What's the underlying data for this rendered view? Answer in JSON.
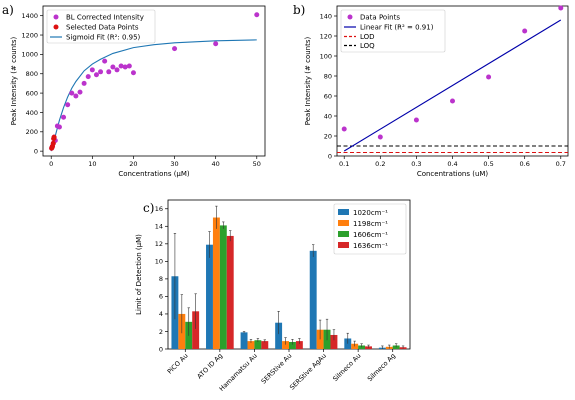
{
  "chart_data": [
    {
      "panel_label": "a)",
      "type": "scatter",
      "xlabel": "Concentrations (μM)",
      "ylabel": "Peak Intensity (# counts)",
      "xlim": [
        -2,
        52
      ],
      "ylim": [
        -50,
        1500
      ],
      "xticks": [
        0,
        10,
        20,
        30,
        40,
        50
      ],
      "yticks": [
        0,
        200,
        400,
        600,
        800,
        1000,
        1200,
        1400
      ],
      "legend_position": "top-left",
      "colors": {
        "bl": "#bb33cc",
        "selected": "#dd1111",
        "fit": "#1f77b4"
      },
      "series": [
        {
          "name": "BL Corrected Intensity",
          "kind": "scatter",
          "x": [
            0.1,
            0.2,
            0.3,
            0.5,
            0.6,
            0.7,
            1,
            1.5,
            2,
            3,
            4,
            5,
            6,
            7,
            8,
            9,
            10,
            11,
            12,
            13,
            14,
            15,
            16,
            17,
            18,
            19,
            20,
            30,
            40,
            50
          ],
          "y": [
            30,
            40,
            50,
            80,
            130,
            145,
            110,
            260,
            250,
            350,
            480,
            600,
            570,
            610,
            700,
            770,
            840,
            790,
            820,
            930,
            820,
            870,
            840,
            880,
            870,
            880,
            810,
            1060,
            1110,
            1410
          ]
        },
        {
          "name": "Selected Data Points",
          "kind": "scatter",
          "x": [
            0.1,
            0.2,
            0.3,
            0.5,
            0.6,
            0.7
          ],
          "y": [
            30,
            40,
            50,
            80,
            130,
            145
          ]
        },
        {
          "name": "Sigmoid Fit (R²: 0.95)",
          "kind": "line",
          "x": [
            0,
            1,
            2,
            3,
            4,
            5,
            6,
            8,
            10,
            12,
            15,
            20,
            25,
            30,
            40,
            50
          ],
          "y": [
            0,
            160,
            320,
            450,
            560,
            650,
            720,
            830,
            900,
            950,
            1010,
            1070,
            1100,
            1120,
            1140,
            1150
          ]
        }
      ]
    },
    {
      "panel_label": "b)",
      "type": "scatter",
      "xlabel": "Concentrations (uM)",
      "ylabel": "Peak Intensity (# counts)",
      "xlim": [
        0.08,
        0.72
      ],
      "ylim": [
        0,
        150
      ],
      "xticks": [
        0.1,
        0.2,
        0.3,
        0.4,
        0.5,
        0.6,
        0.7
      ],
      "yticks": [
        0,
        20,
        40,
        60,
        80,
        100,
        120,
        140
      ],
      "legend_position": "top-left",
      "colors": {
        "points": "#bb33cc",
        "fit": "#0000aa",
        "lod": "#dd1111",
        "loq": "#000000"
      },
      "series": [
        {
          "name": "Data Points",
          "kind": "scatter",
          "x": [
            0.1,
            0.2,
            0.3,
            0.4,
            0.5,
            0.6,
            0.7
          ],
          "y": [
            27,
            19,
            36,
            55,
            79,
            125,
            148
          ]
        },
        {
          "name": "Linear Fit (R² = 0.91)",
          "kind": "line",
          "x": [
            0.1,
            0.7
          ],
          "y": [
            5,
            136
          ]
        },
        {
          "name": "LOD",
          "kind": "hline",
          "y": 3.5
        },
        {
          "name": "LOQ",
          "kind": "hline",
          "y": 10
        }
      ]
    },
    {
      "panel_label": "c)",
      "type": "bar",
      "xlabel": "",
      "ylabel": "Limit of Detection (μM)",
      "ylim": [
        0,
        17
      ],
      "yticks": [
        0,
        2,
        4,
        6,
        8,
        10,
        12,
        14,
        16
      ],
      "legend_position": "top-right",
      "categories": [
        "PiCO Au",
        "ATO ID Ag",
        "Hamamatsu Au",
        "SERStive Au",
        "SERStive AgAu",
        "Silmeco Au",
        "Silmeco Ag"
      ],
      "series": [
        {
          "name": "1020cm⁻¹",
          "color": "#1f77b4",
          "values": [
            8.3,
            11.9,
            1.9,
            3.0,
            11.2,
            1.2,
            0.15
          ],
          "errors": [
            4.9,
            1.5,
            0.1,
            1.3,
            0.7,
            0.6,
            0.2
          ]
        },
        {
          "name": "1198cm⁻¹",
          "color": "#ff7f0e",
          "values": [
            4.0,
            15.0,
            0.9,
            0.9,
            2.2,
            0.6,
            0.25
          ],
          "errors": [
            2.2,
            1.3,
            0.2,
            0.4,
            1.1,
            0.3,
            0.2
          ]
        },
        {
          "name": "1606cm⁻¹",
          "color": "#2ca02c",
          "values": [
            3.1,
            14.1,
            1.0,
            0.8,
            2.2,
            0.4,
            0.4
          ],
          "errors": [
            1.6,
            0.4,
            0.2,
            0.3,
            1.2,
            0.2,
            0.2
          ]
        },
        {
          "name": "1636cm⁻¹",
          "color": "#d62728",
          "values": [
            4.3,
            12.9,
            0.9,
            0.9,
            1.6,
            0.3,
            0.2
          ],
          "errors": [
            2.0,
            0.6,
            0.15,
            0.3,
            0.6,
            0.15,
            0.15
          ]
        }
      ]
    }
  ]
}
